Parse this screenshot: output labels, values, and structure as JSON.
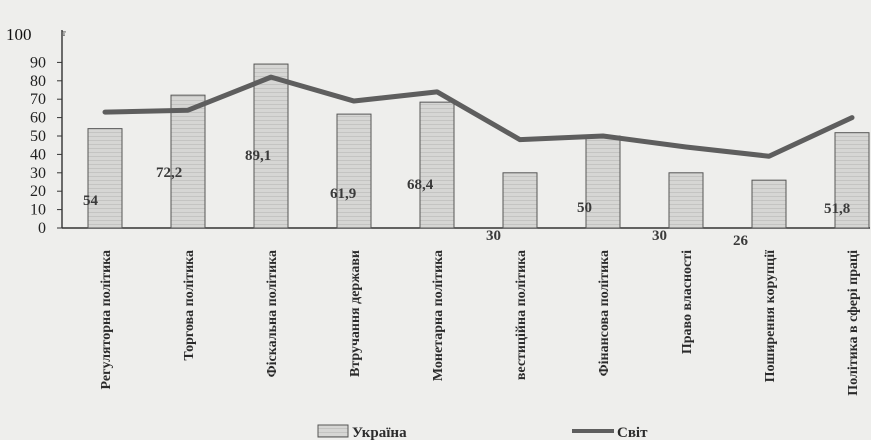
{
  "chart_data": {
    "type": "bar",
    "categories": [
      "Регуляторна політика",
      "Торгова політика",
      "Фіскальна політика",
      "Втручання держави",
      "Монетарна політика",
      "вестиційна політика",
      "Фінансова політика",
      "Право власності",
      "Поширення корупції",
      "Політика в сфері праці"
    ],
    "series": [
      {
        "name": "Україна",
        "type": "bar",
        "values": [
          54,
          72.2,
          89.1,
          61.9,
          68.4,
          30,
          50,
          30,
          26,
          51.8
        ],
        "labels": [
          "54",
          "72,2",
          "89,1",
          "61,9",
          "68,4",
          "30",
          "50",
          "30",
          "26",
          "51,8"
        ]
      },
      {
        "name": "Світ",
        "type": "line",
        "values": [
          63,
          64,
          82,
          69,
          74,
          48,
          50,
          44,
          39,
          60
        ]
      }
    ],
    "ylim": [
      0,
      100
    ],
    "yticks": [
      "0",
      "10",
      "20",
      "30",
      "40",
      "50",
      "60",
      "70",
      "80",
      "90",
      "100"
    ],
    "top_tick_mark": "т",
    "legend_position": "bottom",
    "grid": false,
    "colors": {
      "background": "#eeeeec",
      "bar_fill": "#d2d2d0",
      "bar_stroke": "#555555",
      "line": "#5e5e5e",
      "axis": "#333333"
    }
  }
}
